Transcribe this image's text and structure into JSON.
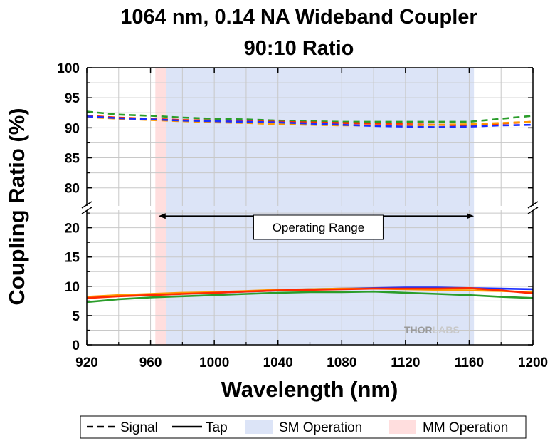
{
  "chart_data": {
    "type": "line",
    "title": "1064 nm, 0.14 NA Wideband Coupler",
    "subtitle": "90:10 Ratio",
    "xlabel": "Wavelength (nm)",
    "ylabel": "Coupling Ratio (%)",
    "xlim": [
      920,
      1200
    ],
    "x_ticks": [
      "920",
      "960",
      "1000",
      "1040",
      "1080",
      "1120",
      "1160",
      "1200"
    ],
    "ylim_upper": [
      77,
      100
    ],
    "ylim_lower": [
      0,
      23
    ],
    "y_ticks_upper": [
      "100",
      "95",
      "90",
      "85",
      "80"
    ],
    "y_ticks_lower": [
      "20",
      "15",
      "10",
      "5",
      "0"
    ],
    "axis_break": true,
    "grid": true,
    "x": [
      920,
      940,
      960,
      980,
      1000,
      1020,
      1040,
      1060,
      1080,
      1100,
      1120,
      1140,
      1160,
      1180,
      1200
    ],
    "series": [
      {
        "group": "signal",
        "style": "dashed",
        "color": "#2a9d2a",
        "values": [
          92.7,
          92.2,
          92.0,
          91.7,
          91.5,
          91.4,
          91.2,
          91.1,
          91.0,
          91.0,
          91.0,
          91.0,
          91.0,
          91.5,
          92.0
        ]
      },
      {
        "group": "signal",
        "style": "dashed",
        "color": "#ff2a00",
        "values": [
          92.0,
          91.7,
          91.5,
          91.3,
          91.2,
          91.1,
          91.0,
          90.9,
          90.8,
          90.7,
          90.6,
          90.5,
          90.4,
          90.7,
          91.0
        ]
      },
      {
        "group": "signal",
        "style": "dashed",
        "color": "#ff9900",
        "values": [
          91.8,
          91.5,
          91.3,
          91.1,
          90.9,
          90.8,
          90.6,
          90.5,
          90.4,
          90.4,
          90.4,
          90.5,
          90.6,
          90.8,
          91.0
        ]
      },
      {
        "group": "signal",
        "style": "dashed",
        "color": "#1a2eff",
        "values": [
          91.9,
          91.6,
          91.4,
          91.2,
          91.1,
          91.0,
          90.9,
          90.7,
          90.5,
          90.3,
          90.2,
          90.1,
          90.2,
          90.4,
          90.5
        ]
      },
      {
        "group": "tap",
        "style": "solid",
        "color": "#1a2eff",
        "values": [
          8.1,
          8.4,
          8.6,
          8.8,
          8.9,
          9.1,
          9.3,
          9.5,
          9.6,
          9.7,
          9.8,
          9.8,
          9.7,
          9.6,
          9.5
        ]
      },
      {
        "group": "tap",
        "style": "solid",
        "color": "#ff9900",
        "values": [
          8.2,
          8.5,
          8.7,
          8.9,
          9.0,
          9.2,
          9.4,
          9.5,
          9.6,
          9.6,
          9.5,
          9.4,
          9.3,
          9.2,
          9.0
        ]
      },
      {
        "group": "tap",
        "style": "solid",
        "color": "#ff2a00",
        "values": [
          8.0,
          8.3,
          8.5,
          8.7,
          8.9,
          9.1,
          9.3,
          9.4,
          9.5,
          9.6,
          9.6,
          9.6,
          9.7,
          9.3,
          8.8
        ]
      },
      {
        "group": "tap",
        "style": "solid",
        "color": "#2a9d2a",
        "values": [
          7.3,
          7.8,
          8.1,
          8.3,
          8.5,
          8.7,
          8.9,
          9.0,
          9.0,
          9.1,
          8.9,
          8.7,
          8.5,
          8.2,
          8.0
        ]
      }
    ],
    "regions": [
      {
        "label": "SM Operation",
        "from": 970,
        "to": 1163,
        "color": "#dce4f7"
      },
      {
        "label": "MM Operation",
        "from": 963,
        "to": 970,
        "color": "#ffdede"
      }
    ],
    "annotation": {
      "text": "Operating Range",
      "from": 965,
      "to": 1163,
      "y": 22
    },
    "watermark": {
      "text_a": "THOR",
      "text_b": "LABS"
    },
    "legend": {
      "position": "bottom",
      "items": [
        {
          "label": "Signal",
          "kind": "dashed"
        },
        {
          "label": "Tap",
          "kind": "solid"
        },
        {
          "label": "SM Operation",
          "kind": "region",
          "color": "#dce4f7"
        },
        {
          "label": "MM Operation",
          "kind": "region",
          "color": "#ffdede"
        }
      ]
    }
  }
}
